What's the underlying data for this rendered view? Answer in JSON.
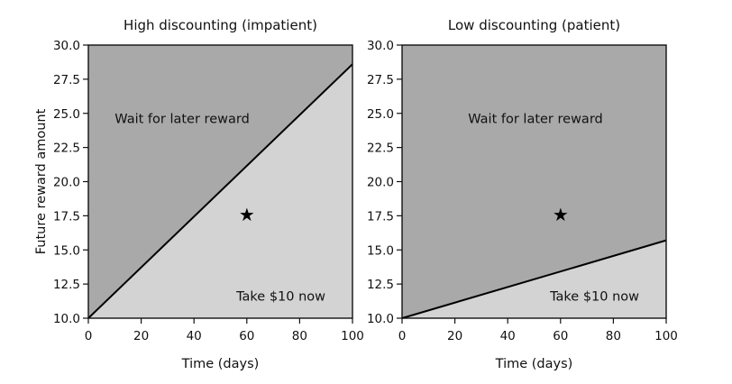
{
  "chart_data": [
    {
      "type": "area",
      "title": "High discounting (impatient)",
      "xlabel": "Time (days)",
      "ylabel": "Future reward amount",
      "xlim": [
        0,
        100
      ],
      "ylim": [
        10,
        30
      ],
      "xticks": [
        "0",
        "20",
        "40",
        "60",
        "80",
        "100"
      ],
      "yticks": [
        "10.0",
        "12.5",
        "15.0",
        "17.5",
        "20.0",
        "22.5",
        "25.0",
        "27.5",
        "30.0"
      ],
      "boundary": {
        "x": [
          0,
          100
        ],
        "y": [
          10.0,
          28.6
        ]
      },
      "regions": {
        "above": "Wait for later reward",
        "below": "Take $10 now"
      },
      "colors": {
        "above": "#a9a9a9",
        "below": "#d3d3d3"
      },
      "marker": {
        "x": 60,
        "y": 17.6,
        "symbol": "★"
      }
    },
    {
      "type": "area",
      "title": "Low discounting (patient)",
      "xlabel": "Time (days)",
      "ylabel": "",
      "xlim": [
        0,
        100
      ],
      "ylim": [
        10,
        30
      ],
      "xticks": [
        "0",
        "20",
        "40",
        "60",
        "80",
        "100"
      ],
      "yticks": [
        "10.0",
        "12.5",
        "15.0",
        "17.5",
        "20.0",
        "22.5",
        "25.0",
        "27.5",
        "30.0"
      ],
      "boundary": {
        "x": [
          0,
          100
        ],
        "y": [
          10.0,
          15.7
        ]
      },
      "regions": {
        "above": "Wait for later reward",
        "below": "Take $10 now"
      },
      "colors": {
        "above": "#a9a9a9",
        "below": "#d3d3d3"
      },
      "marker": {
        "x": 60,
        "y": 17.6,
        "symbol": "★"
      }
    }
  ]
}
